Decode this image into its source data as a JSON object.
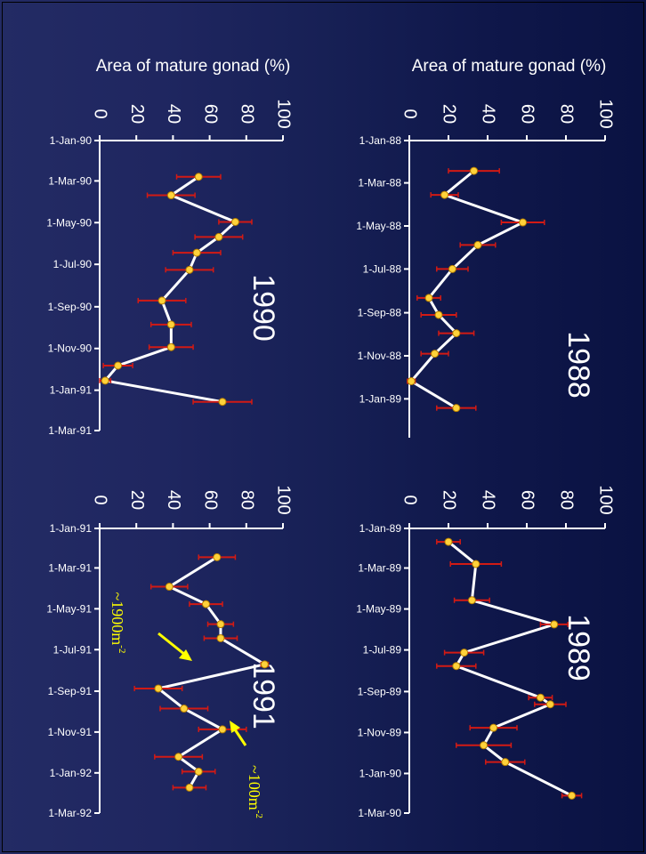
{
  "chart_data": [
    {
      "type": "line",
      "panel": "top-left",
      "annotation": "1990",
      "xlabel": "Area of mature gonad (%)",
      "xlim": [
        0,
        100
      ],
      "x_ticks": [
        "0",
        "20",
        "40",
        "60",
        "80",
        "100"
      ],
      "date_ticks": [
        "1-Jan-90",
        "1-Mar-90",
        "1-May-90",
        "1-Jul-90",
        "1-Sep-90",
        "1-Nov-90",
        "1-Jan-91",
        "1-Mar-91"
      ],
      "date_range": [
        "1990-01-01",
        "1991-03-01"
      ],
      "points": [
        {
          "date": "1990-02-23",
          "value": 54,
          "err": 12
        },
        {
          "date": "1990-03-22",
          "value": 39,
          "err": 13
        },
        {
          "date": "1990-04-30",
          "value": 74,
          "err": 9
        },
        {
          "date": "1990-05-22",
          "value": 65,
          "err": 13
        },
        {
          "date": "1990-06-14",
          "value": 53,
          "err": 13
        },
        {
          "date": "1990-07-09",
          "value": 49,
          "err": 13
        },
        {
          "date": "1990-08-23",
          "value": 34,
          "err": 13
        },
        {
          "date": "1990-09-27",
          "value": 39,
          "err": 11
        },
        {
          "date": "1990-10-30",
          "value": 39,
          "err": 12
        },
        {
          "date": "1990-11-26",
          "value": 10,
          "err": 8
        },
        {
          "date": "1990-12-18",
          "value": 3,
          "err": 3
        },
        {
          "date": "1991-01-18",
          "value": 67,
          "err": 16
        }
      ]
    },
    {
      "type": "line",
      "panel": "top-right",
      "annotation": "1988",
      "xlabel": "Area of mature gonad (%)",
      "xlim": [
        0,
        100
      ],
      "x_ticks": [
        "0",
        "20",
        "40",
        "60",
        "80",
        "100"
      ],
      "date_ticks": [
        "1-Jan-88",
        "1-Mar-88",
        "1-May-88",
        "1-Jul-88",
        "1-Sep-88",
        "1-Nov-88",
        "1-Jan-89"
      ],
      "date_range": [
        "1988-01-01",
        "1989-02-25"
      ],
      "points": [
        {
          "date": "1988-02-13",
          "value": 33,
          "err": 13
        },
        {
          "date": "1988-03-18",
          "value": 18,
          "err": 7
        },
        {
          "date": "1988-04-26",
          "value": 58,
          "err": 11
        },
        {
          "date": "1988-05-28",
          "value": 35,
          "err": 9
        },
        {
          "date": "1988-07-01",
          "value": 22,
          "err": 8
        },
        {
          "date": "1988-08-11",
          "value": 10,
          "err": 6
        },
        {
          "date": "1988-09-04",
          "value": 15,
          "err": 9
        },
        {
          "date": "1988-09-30",
          "value": 24,
          "err": 9
        },
        {
          "date": "1988-10-29",
          "value": 13,
          "err": 7
        },
        {
          "date": "1988-12-07",
          "value": 1,
          "err": 2
        },
        {
          "date": "1989-01-14",
          "value": 24,
          "err": 10
        }
      ]
    },
    {
      "type": "line",
      "panel": "bottom-left",
      "annotation": "1991",
      "xlabel": "",
      "xlim": [
        0,
        100
      ],
      "x_ticks": [
        "0",
        "20",
        "40",
        "60",
        "80",
        "100"
      ],
      "date_ticks": [
        "1-Jan-91",
        "1-Mar-91",
        "1-May-91",
        "1-Jul-91",
        "1-Sep-91",
        "1-Nov-91",
        "1-Jan-92",
        "1-Mar-92"
      ],
      "date_range": [
        "1991-01-01",
        "1992-03-01"
      ],
      "points": [
        {
          "date": "1991-02-13",
          "value": 64,
          "err": 10
        },
        {
          "date": "1991-03-29",
          "value": 38,
          "err": 10
        },
        {
          "date": "1991-04-24",
          "value": 58,
          "err": 9
        },
        {
          "date": "1991-05-24",
          "value": 66,
          "err": 7
        },
        {
          "date": "1991-06-14",
          "value": 66,
          "err": 9
        },
        {
          "date": "1991-07-23",
          "value": 90,
          "err": 2
        },
        {
          "date": "1991-08-28",
          "value": 32,
          "err": 13
        },
        {
          "date": "1991-09-27",
          "value": 46,
          "err": 13
        },
        {
          "date": "1991-10-28",
          "value": 67,
          "err": 13
        },
        {
          "date": "1991-12-08",
          "value": 43,
          "err": 13
        },
        {
          "date": "1991-12-30",
          "value": 54,
          "err": 9
        },
        {
          "date": "1992-01-23",
          "value": 49,
          "err": 9
        }
      ],
      "notes": [
        {
          "text": "~1900m",
          "sup": "-2"
        },
        {
          "text": "~100m",
          "sup": "-2"
        }
      ]
    },
    {
      "type": "line",
      "panel": "bottom-right",
      "annotation": "1989",
      "xlabel": "",
      "xlim": [
        0,
        100
      ],
      "x_ticks": [
        "0",
        "20",
        "40",
        "60",
        "80",
        "100"
      ],
      "date_ticks": [
        "1-Jan-89",
        "1-Mar-89",
        "1-May-89",
        "1-Jul-89",
        "1-Sep-89",
        "1-Nov-89",
        "1-Jan-90",
        "1-Mar-90"
      ],
      "date_range": [
        "1989-01-01",
        "1990-03-01"
      ],
      "points": [
        {
          "date": "1989-01-21",
          "value": 20,
          "err": 6
        },
        {
          "date": "1989-02-23",
          "value": 34,
          "err": 13
        },
        {
          "date": "1989-04-18",
          "value": 32,
          "err": 9
        },
        {
          "date": "1989-05-24",
          "value": 74,
          "err": 7
        },
        {
          "date": "1989-07-05",
          "value": 28,
          "err": 10
        },
        {
          "date": "1989-07-25",
          "value": 24,
          "err": 10
        },
        {
          "date": "1989-09-10",
          "value": 67,
          "err": 6
        },
        {
          "date": "1989-09-20",
          "value": 72,
          "err": 8
        },
        {
          "date": "1989-10-25",
          "value": 43,
          "err": 12
        },
        {
          "date": "1989-11-20",
          "value": 38,
          "err": 14
        },
        {
          "date": "1989-12-15",
          "value": 49,
          "err": 10
        },
        {
          "date": "1990-02-03",
          "value": 83,
          "err": 5
        }
      ]
    }
  ],
  "colors": {
    "axis": "#ffffff",
    "line": "#ffffff",
    "marker": "#ffd23a",
    "errorbar": "#d21a14",
    "annotation": "#ffff00",
    "background_left": "#232b64",
    "background_right": "#0a1242"
  }
}
